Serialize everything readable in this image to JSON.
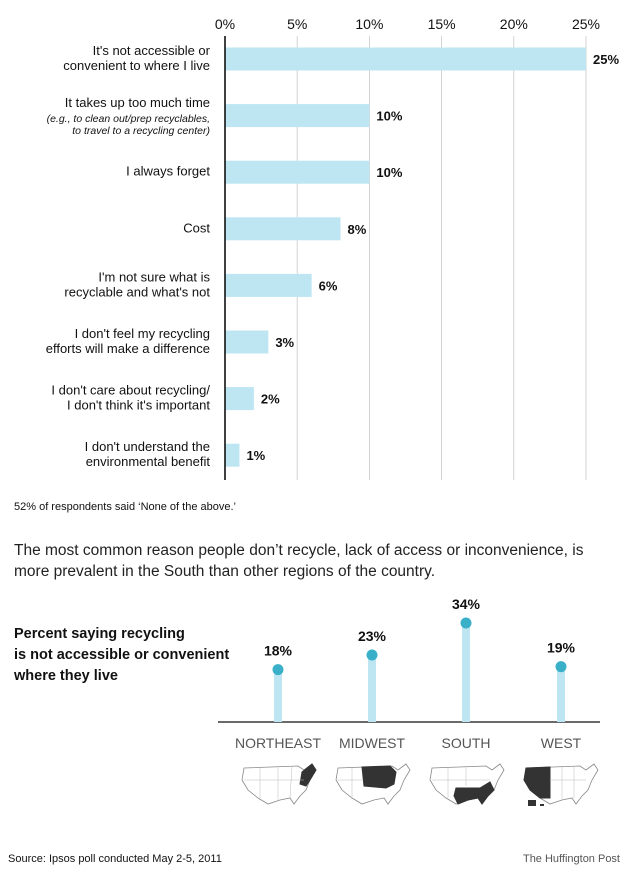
{
  "chart_data": [
    {
      "type": "bar",
      "orientation": "horizontal",
      "categories": [
        [
          "It's not accessible or",
          "convenient to where I live"
        ],
        [
          "It takes up too much time",
          "(e.g., to clean out/prep recyclables,",
          "to travel to a recycling center)"
        ],
        [
          "I always forget"
        ],
        [
          "Cost"
        ],
        [
          "I'm not sure what is",
          "recyclable and what's not"
        ],
        [
          "I don't feel my recycling",
          "efforts will make a difference"
        ],
        [
          "I don't care about recycling/",
          "I don't think it's important"
        ],
        [
          "I don't understand the",
          "environmental benefit"
        ]
      ],
      "values": [
        25,
        10,
        10,
        8,
        6,
        3,
        2,
        1
      ],
      "value_labels": [
        "25%",
        "10%",
        "10%",
        "8%",
        "6%",
        "3%",
        "2%",
        "1%"
      ],
      "xlim": [
        0,
        25
      ],
      "ticks": [
        0,
        5,
        10,
        15,
        20,
        25
      ],
      "tick_labels": [
        "0%",
        "5%",
        "10%",
        "15%",
        "20%",
        "25%"
      ],
      "grid": true,
      "bar_color": "#bee5f2"
    },
    {
      "type": "bar",
      "style": "lollipop",
      "title": [
        "Percent saying recycling",
        "is not accessible or convenient",
        "where they live"
      ],
      "categories": [
        "NORTHEAST",
        "MIDWEST",
        "SOUTH",
        "WEST"
      ],
      "values": [
        18,
        23,
        34,
        19
      ],
      "value_labels": [
        "18%",
        "23%",
        "34%",
        "19%"
      ],
      "stem_color": "#bee5f2",
      "dot_color": "#3ab0c8"
    }
  ],
  "note": "52% of respondents said ‘None of the above.’",
  "intro": "The most common reason people don’t recycle, lack of access or inconvenience, is more prevalent in the South than other regions of the country.",
  "region_title": [
    "Percent saying recycling",
    "is not accessible or convenient",
    "where they live"
  ],
  "source": "Source: Ipsos poll conducted May 2-5, 2011",
  "credit": "The Huffington Post",
  "maps": [
    {
      "region": "NORTHEAST",
      "icon": "us-map-northeast-highlighted"
    },
    {
      "region": "MIDWEST",
      "icon": "us-map-midwest-highlighted"
    },
    {
      "region": "SOUTH",
      "icon": "us-map-south-highlighted"
    },
    {
      "region": "WEST",
      "icon": "us-map-west-highlighted"
    }
  ],
  "colors": {
    "map_fill": "#ffffff",
    "map_highlight": "#333333",
    "map_stroke": "#888888",
    "axis": "#111111"
  }
}
